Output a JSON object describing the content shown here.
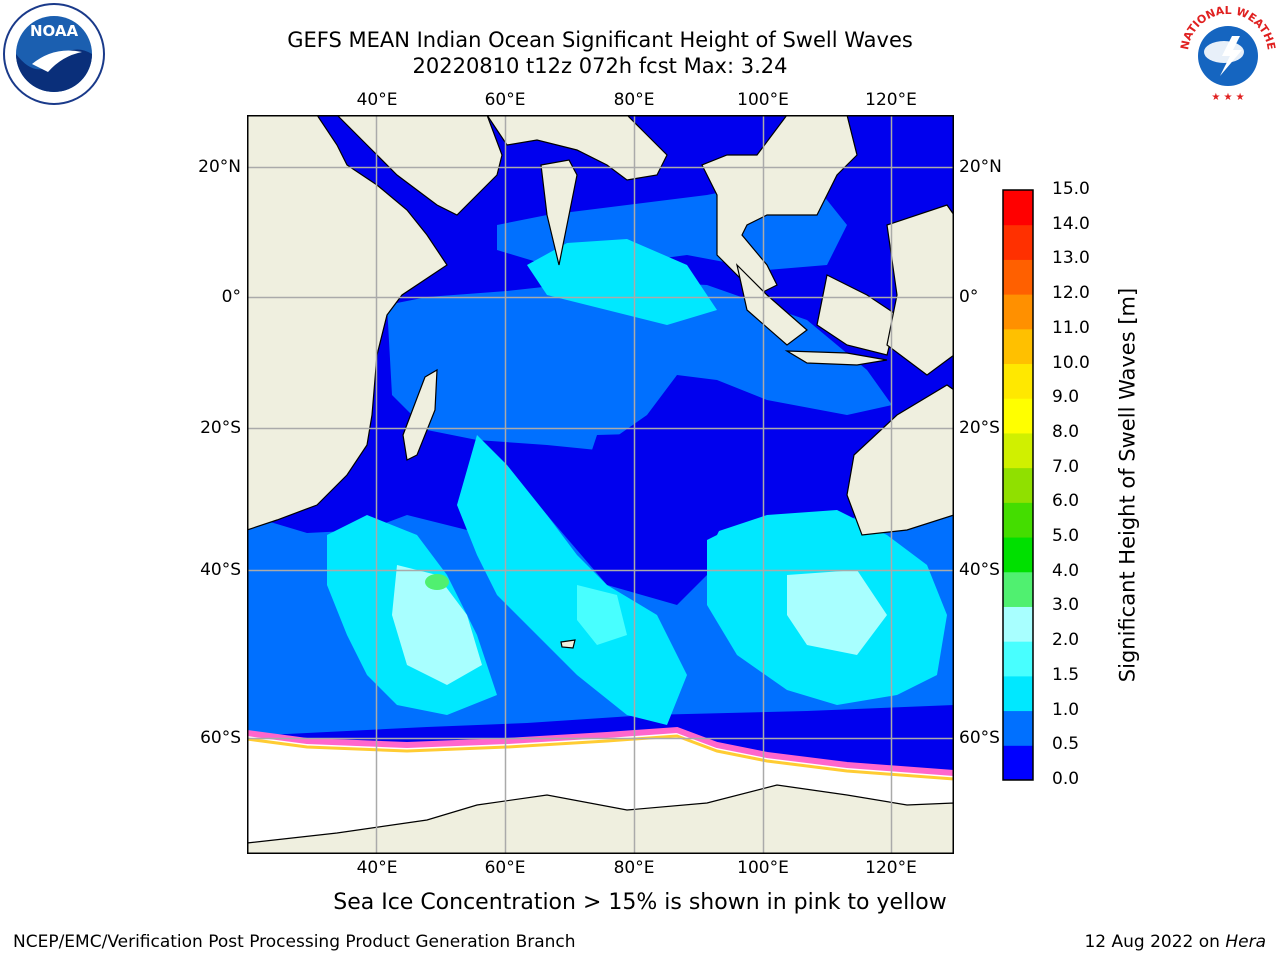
{
  "header": {
    "title_line1": "GEFS MEAN Indian Ocean Significant Height of Swell Waves",
    "title_line2": "20220810 t12z 072h fcst    Max: 3.24"
  },
  "map": {
    "lon_labels": [
      "40°E",
      "60°E",
      "80°E",
      "100°E",
      "120°E"
    ],
    "lat_labels": [
      "20°N",
      "0°",
      "20°S",
      "40°S",
      "60°S"
    ]
  },
  "colorbar": {
    "title": "Significant Height of Swell Waves [m]",
    "ticks": [
      "0.0",
      "0.5",
      "1.0",
      "1.5",
      "2.0",
      "3.0",
      "4.0",
      "5.0",
      "6.0",
      "7.0",
      "8.0",
      "9.0",
      "10.0",
      "11.0",
      "12.0",
      "13.0",
      "14.0",
      "15.0"
    ],
    "colors": [
      "#0000ff",
      "#0070ff",
      "#00e8ff",
      "#48ffff",
      "#a8ffff",
      "#50f070",
      "#00e000",
      "#44dd00",
      "#90e000",
      "#d0f000",
      "#ffff00",
      "#ffe800",
      "#ffc000",
      "#ff9000",
      "#ff6000",
      "#ff3000",
      "#ff0000"
    ]
  },
  "caption": "Sea Ice Concentration > 15% is shown in pink to yellow",
  "footer": {
    "left": "NCEP/EMC/Verification Post Processing Product Generation Branch",
    "right_prefix": "12 Aug 2022 on",
    "right_host": "Hera"
  },
  "logos": {
    "noaa_text": "NOAA",
    "nws_text": "NATIONAL WEATHER SERVICE"
  },
  "palette": {
    "land": "#efefdf",
    "ocean_low": "#0000ee",
    "ocean_mid": "#0070ff",
    "ocean_high": "#00e8ff",
    "ocean_peak": "#a8ffff",
    "sea_ice_edge": "#ff66cc",
    "grid": "#aaaaaa"
  }
}
